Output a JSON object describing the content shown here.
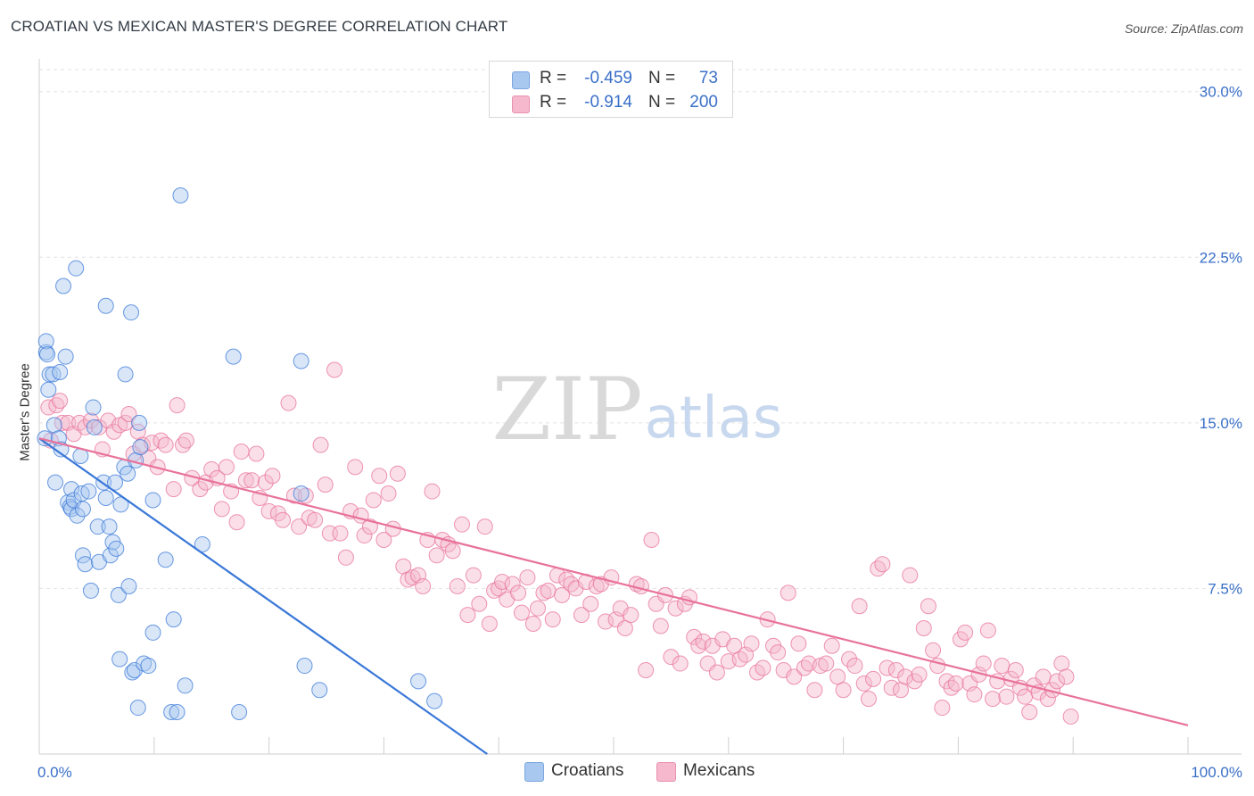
{
  "title": "CROATIAN VS MEXICAN MASTER'S DEGREE CORRELATION CHART",
  "source": "Source: ZipAtlas.com",
  "watermark": {
    "zip": "ZIP",
    "atlas": "atlas"
  },
  "colors": {
    "blue": "#3a78d8",
    "blue_fill": "#a8c8f0",
    "pink": "#e8729a",
    "pink_fill": "#f5b8cc",
    "axis_text": "#3a6fc8",
    "grid": "#e2e2e2"
  },
  "legend": {
    "rows": [
      {
        "series": "Croatians",
        "r_label": "R =",
        "r_value": "-0.459",
        "n_label": "N =",
        "n_value": "73"
      },
      {
        "series": "Mexicans",
        "r_label": "R =",
        "r_value": "-0.914",
        "n_label": "N =",
        "n_value": "200"
      }
    ]
  },
  "bottom_legend": [
    "Croatians",
    "Mexicans"
  ],
  "chart_data": {
    "type": "scatter",
    "title": "CROATIAN VS MEXICAN MASTER'S DEGREE CORRELATION CHART",
    "xlabel": "",
    "ylabel": "Master's Degree",
    "xlim": [
      0,
      100
    ],
    "ylim": [
      0,
      31
    ],
    "x_tick_labels": [
      {
        "value": 0,
        "label": "0.0%"
      },
      {
        "value": 100,
        "label": "100.0%"
      }
    ],
    "y_ticks": [
      {
        "value": 7.5,
        "label": "7.5%"
      },
      {
        "value": 15.0,
        "label": "15.0%"
      },
      {
        "value": 22.5,
        "label": "22.5%"
      },
      {
        "value": 30.0,
        "label": "30.0%"
      }
    ],
    "x_minor_ticks": [
      10,
      20,
      30,
      40,
      50,
      60,
      70,
      80,
      90,
      100
    ],
    "series": [
      {
        "name": "Croatians",
        "trend": {
          "x": [
            0,
            39
          ],
          "y": [
            14.3,
            0
          ]
        },
        "points": [
          [
            0.5,
            14.3
          ],
          [
            0.6,
            18.2
          ],
          [
            0.6,
            18.7
          ],
          [
            0.7,
            18.1
          ],
          [
            0.8,
            16.5
          ],
          [
            0.9,
            17.2
          ],
          [
            1.2,
            17.2
          ],
          [
            1.3,
            14.9
          ],
          [
            1.4,
            12.3
          ],
          [
            1.7,
            14.3
          ],
          [
            1.8,
            17.3
          ],
          [
            1.9,
            13.8
          ],
          [
            2.1,
            21.2
          ],
          [
            2.3,
            18.0
          ],
          [
            2.5,
            11.4
          ],
          [
            2.7,
            11.2
          ],
          [
            2.8,
            11.1
          ],
          [
            2.8,
            12.0
          ],
          [
            3.0,
            11.5
          ],
          [
            3.2,
            22.0
          ],
          [
            3.3,
            10.8
          ],
          [
            3.6,
            13.5
          ],
          [
            3.7,
            11.8
          ],
          [
            3.8,
            9.0
          ],
          [
            3.8,
            11.1
          ],
          [
            4.0,
            8.6
          ],
          [
            4.3,
            11.9
          ],
          [
            4.5,
            7.4
          ],
          [
            4.7,
            15.7
          ],
          [
            4.8,
            14.8
          ],
          [
            5.1,
            10.3
          ],
          [
            5.2,
            8.7
          ],
          [
            5.6,
            12.3
          ],
          [
            5.8,
            20.3
          ],
          [
            5.8,
            11.6
          ],
          [
            6.1,
            10.3
          ],
          [
            6.2,
            9.0
          ],
          [
            6.4,
            9.6
          ],
          [
            6.6,
            12.3
          ],
          [
            6.7,
            9.3
          ],
          [
            6.9,
            7.2
          ],
          [
            7.0,
            4.3
          ],
          [
            7.1,
            11.3
          ],
          [
            7.4,
            13.0
          ],
          [
            7.5,
            17.2
          ],
          [
            7.7,
            12.7
          ],
          [
            7.8,
            7.6
          ],
          [
            8.0,
            20.0
          ],
          [
            8.1,
            3.7
          ],
          [
            8.3,
            3.8
          ],
          [
            8.4,
            13.3
          ],
          [
            8.6,
            2.1
          ],
          [
            8.7,
            15.0
          ],
          [
            8.8,
            13.9
          ],
          [
            9.1,
            4.1
          ],
          [
            9.5,
            4.0
          ],
          [
            9.9,
            5.5
          ],
          [
            9.9,
            11.5
          ],
          [
            11.0,
            8.8
          ],
          [
            11.5,
            1.9
          ],
          [
            11.7,
            6.1
          ],
          [
            12.0,
            1.9
          ],
          [
            12.3,
            25.3
          ],
          [
            12.7,
            3.1
          ],
          [
            14.2,
            9.5
          ],
          [
            16.9,
            18.0
          ],
          [
            17.4,
            1.9
          ],
          [
            22.8,
            11.8
          ],
          [
            22.8,
            17.8
          ],
          [
            23.1,
            4.0
          ],
          [
            24.4,
            2.9
          ],
          [
            33.0,
            3.3
          ],
          [
            34.4,
            2.4
          ]
        ]
      },
      {
        "name": "Mexicans",
        "trend": {
          "x": [
            0,
            100
          ],
          "y": [
            14.3,
            1.3
          ]
        },
        "points": [
          [
            0.8,
            15.7
          ],
          [
            1.0,
            14.2
          ],
          [
            1.5,
            15.8
          ],
          [
            1.8,
            16.0
          ],
          [
            2.0,
            15.0
          ],
          [
            2.5,
            15.0
          ],
          [
            3.0,
            14.5
          ],
          [
            3.5,
            15.0
          ],
          [
            4.0,
            14.8
          ],
          [
            4.5,
            15.1
          ],
          [
            5.2,
            14.8
          ],
          [
            5.5,
            13.8
          ],
          [
            6.0,
            15.1
          ],
          [
            6.5,
            14.6
          ],
          [
            7.0,
            14.9
          ],
          [
            7.5,
            15.0
          ],
          [
            7.8,
            15.4
          ],
          [
            8.2,
            13.6
          ],
          [
            8.6,
            14.6
          ],
          [
            9.0,
            14.0
          ],
          [
            9.5,
            13.4
          ],
          [
            9.8,
            14.1
          ],
          [
            10.3,
            13.0
          ],
          [
            10.6,
            14.2
          ],
          [
            11.0,
            14.0
          ],
          [
            11.7,
            12.0
          ],
          [
            12.0,
            15.8
          ],
          [
            12.5,
            14.0
          ],
          [
            12.8,
            14.2
          ],
          [
            13.3,
            12.5
          ],
          [
            14.0,
            12.0
          ],
          [
            14.5,
            12.3
          ],
          [
            15.0,
            12.9
          ],
          [
            15.5,
            12.5
          ],
          [
            15.9,
            11.1
          ],
          [
            16.3,
            13.0
          ],
          [
            16.7,
            11.9
          ],
          [
            17.2,
            10.5
          ],
          [
            17.6,
            13.7
          ],
          [
            18.0,
            12.4
          ],
          [
            18.5,
            12.4
          ],
          [
            18.9,
            13.6
          ],
          [
            19.2,
            11.6
          ],
          [
            19.7,
            12.3
          ],
          [
            20.0,
            11.0
          ],
          [
            20.3,
            12.6
          ],
          [
            20.8,
            10.9
          ],
          [
            21.2,
            10.6
          ],
          [
            21.7,
            15.9
          ],
          [
            22.2,
            11.7
          ],
          [
            22.6,
            10.3
          ],
          [
            23.2,
            11.7
          ],
          [
            23.5,
            10.7
          ],
          [
            24.0,
            10.6
          ],
          [
            24.5,
            14.0
          ],
          [
            24.9,
            12.2
          ],
          [
            25.3,
            10.0
          ],
          [
            25.7,
            17.4
          ],
          [
            26.2,
            10.0
          ],
          [
            26.7,
            8.9
          ],
          [
            27.1,
            11.0
          ],
          [
            27.5,
            13.0
          ],
          [
            28.0,
            10.8
          ],
          [
            28.3,
            9.9
          ],
          [
            28.8,
            10.3
          ],
          [
            29.1,
            11.5
          ],
          [
            29.6,
            12.6
          ],
          [
            30.0,
            9.7
          ],
          [
            30.4,
            11.8
          ],
          [
            30.8,
            10.2
          ],
          [
            31.2,
            12.7
          ],
          [
            31.7,
            8.5
          ],
          [
            32.1,
            7.9
          ],
          [
            32.5,
            8.0
          ],
          [
            33.0,
            8.1
          ],
          [
            33.4,
            7.6
          ],
          [
            33.8,
            9.7
          ],
          [
            34.2,
            11.9
          ],
          [
            34.6,
            9.0
          ],
          [
            35.1,
            9.7
          ],
          [
            35.6,
            9.5
          ],
          [
            36.0,
            9.2
          ],
          [
            36.4,
            7.6
          ],
          [
            36.8,
            10.4
          ],
          [
            37.3,
            6.3
          ],
          [
            37.8,
            8.1
          ],
          [
            38.3,
            6.8
          ],
          [
            38.8,
            10.3
          ],
          [
            39.2,
            5.9
          ],
          [
            39.6,
            7.4
          ],
          [
            40.0,
            7.5
          ],
          [
            40.3,
            7.8
          ],
          [
            40.7,
            7.0
          ],
          [
            41.2,
            7.7
          ],
          [
            41.7,
            7.3
          ],
          [
            42.0,
            6.4
          ],
          [
            42.5,
            8.0
          ],
          [
            43.0,
            5.9
          ],
          [
            43.4,
            6.6
          ],
          [
            43.9,
            7.3
          ],
          [
            44.3,
            7.4
          ],
          [
            44.7,
            6.1
          ],
          [
            45.1,
            8.1
          ],
          [
            45.5,
            7.2
          ],
          [
            45.9,
            7.9
          ],
          [
            46.3,
            7.7
          ],
          [
            46.7,
            7.5
          ],
          [
            47.2,
            6.3
          ],
          [
            47.6,
            7.8
          ],
          [
            48.0,
            6.8
          ],
          [
            48.5,
            7.6
          ],
          [
            48.9,
            7.7
          ],
          [
            49.3,
            6.0
          ],
          [
            49.8,
            8.0
          ],
          [
            50.2,
            6.1
          ],
          [
            50.6,
            6.6
          ],
          [
            51.0,
            5.7
          ],
          [
            51.5,
            6.3
          ],
          [
            52.0,
            7.7
          ],
          [
            52.4,
            7.6
          ],
          [
            52.8,
            3.8
          ],
          [
            53.3,
            9.7
          ],
          [
            53.7,
            6.8
          ],
          [
            54.1,
            5.8
          ],
          [
            54.5,
            7.2
          ],
          [
            55.0,
            4.4
          ],
          [
            55.4,
            6.6
          ],
          [
            55.8,
            4.1
          ],
          [
            56.2,
            6.8
          ],
          [
            56.6,
            7.1
          ],
          [
            57.0,
            5.3
          ],
          [
            57.4,
            4.9
          ],
          [
            57.8,
            5.1
          ],
          [
            58.2,
            4.1
          ],
          [
            58.6,
            4.9
          ],
          [
            59.0,
            3.7
          ],
          [
            59.5,
            5.2
          ],
          [
            60.0,
            4.2
          ],
          [
            60.5,
            4.9
          ],
          [
            61.0,
            4.3
          ],
          [
            61.5,
            4.5
          ],
          [
            62.0,
            5.0
          ],
          [
            62.5,
            3.7
          ],
          [
            63.0,
            3.9
          ],
          [
            63.4,
            6.1
          ],
          [
            63.9,
            4.9
          ],
          [
            64.3,
            4.6
          ],
          [
            64.8,
            3.8
          ],
          [
            65.2,
            7.3
          ],
          [
            65.7,
            3.5
          ],
          [
            66.1,
            5.0
          ],
          [
            66.6,
            3.9
          ],
          [
            67.0,
            4.1
          ],
          [
            67.5,
            2.9
          ],
          [
            68.0,
            4.0
          ],
          [
            68.5,
            4.1
          ],
          [
            69.0,
            4.9
          ],
          [
            69.5,
            3.5
          ],
          [
            70.0,
            2.9
          ],
          [
            70.5,
            4.3
          ],
          [
            71.0,
            4.0
          ],
          [
            71.4,
            6.7
          ],
          [
            71.8,
            3.2
          ],
          [
            72.2,
            2.5
          ],
          [
            72.6,
            3.4
          ],
          [
            73.0,
            8.4
          ],
          [
            73.4,
            8.6
          ],
          [
            73.8,
            3.9
          ],
          [
            74.2,
            3.0
          ],
          [
            74.6,
            3.8
          ],
          [
            75.0,
            2.9
          ],
          [
            75.4,
            3.5
          ],
          [
            75.8,
            8.1
          ],
          [
            76.2,
            3.3
          ],
          [
            76.6,
            3.6
          ],
          [
            77.0,
            5.7
          ],
          [
            77.4,
            6.7
          ],
          [
            77.8,
            4.7
          ],
          [
            78.2,
            4.0
          ],
          [
            78.6,
            2.1
          ],
          [
            79.0,
            3.3
          ],
          [
            79.4,
            3.0
          ],
          [
            79.8,
            3.2
          ],
          [
            80.2,
            5.2
          ],
          [
            80.6,
            5.5
          ],
          [
            81.0,
            3.2
          ],
          [
            81.4,
            2.7
          ],
          [
            81.8,
            3.6
          ],
          [
            82.2,
            4.1
          ],
          [
            82.6,
            5.6
          ],
          [
            83.0,
            2.5
          ],
          [
            83.4,
            3.3
          ],
          [
            83.8,
            4.0
          ],
          [
            84.2,
            2.6
          ],
          [
            84.6,
            3.4
          ],
          [
            85.0,
            3.8
          ],
          [
            85.4,
            3.0
          ],
          [
            85.8,
            2.6
          ],
          [
            86.2,
            1.9
          ],
          [
            86.6,
            3.1
          ],
          [
            87.0,
            2.8
          ],
          [
            87.4,
            3.5
          ],
          [
            87.8,
            2.5
          ],
          [
            88.2,
            2.9
          ],
          [
            88.6,
            3.3
          ],
          [
            89.0,
            4.1
          ],
          [
            89.4,
            3.5
          ],
          [
            89.8,
            1.7
          ]
        ]
      }
    ]
  }
}
